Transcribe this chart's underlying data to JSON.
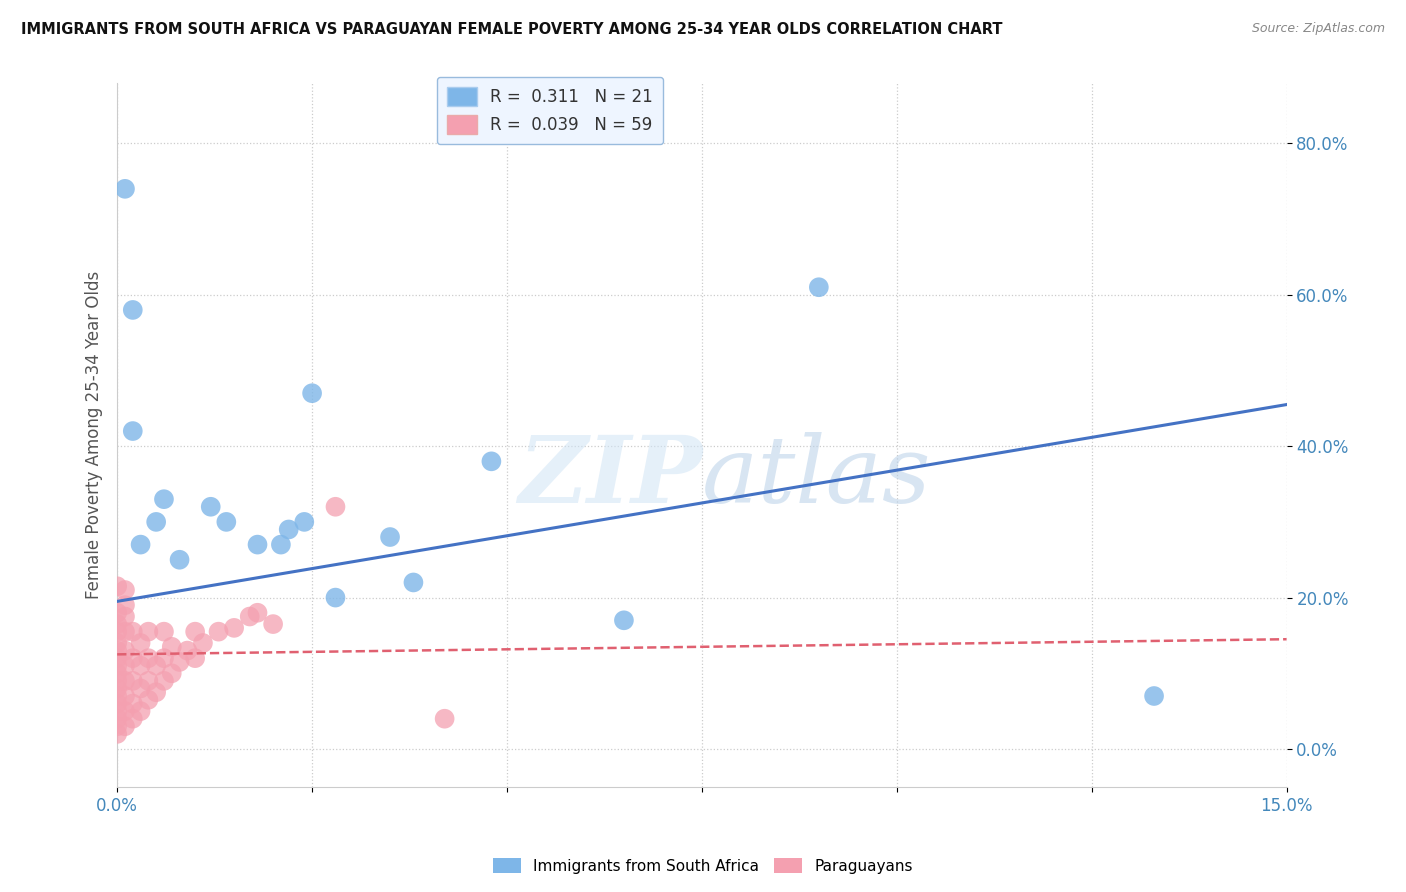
{
  "title": "IMMIGRANTS FROM SOUTH AFRICA VS PARAGUAYAN FEMALE POVERTY AMONG 25-34 YEAR OLDS CORRELATION CHART",
  "source": "Source: ZipAtlas.com",
  "ylabel": "Female Poverty Among 25-34 Year Olds",
  "xlim": [
    0.0,
    0.15
  ],
  "ylim": [
    -0.05,
    0.88
  ],
  "xticks": [
    0.0,
    0.025,
    0.05,
    0.075,
    0.1,
    0.125,
    0.15
  ],
  "yticks": [
    0.0,
    0.2,
    0.4,
    0.6,
    0.8
  ],
  "ytick_labels": [
    "0.0%",
    "20.0%",
    "40.0%",
    "60.0%",
    "80.0%"
  ],
  "xtick_labels": [
    "0.0%",
    "",
    "",
    "",
    "",
    "",
    "15.0%"
  ],
  "blue_R": 0.311,
  "blue_N": 21,
  "pink_R": 0.039,
  "pink_N": 59,
  "blue_color": "#7EB6E8",
  "pink_color": "#F4A0B0",
  "blue_line_color": "#4472C4",
  "pink_line_color": "#E06070",
  "watermark": "ZIPatlas",
  "blue_scatter_x": [
    0.001,
    0.002,
    0.002,
    0.003,
    0.005,
    0.006,
    0.008,
    0.012,
    0.014,
    0.018,
    0.021,
    0.022,
    0.024,
    0.025,
    0.028,
    0.035,
    0.038,
    0.048,
    0.065,
    0.09,
    0.133
  ],
  "blue_scatter_y": [
    0.74,
    0.58,
    0.42,
    0.27,
    0.3,
    0.33,
    0.25,
    0.32,
    0.3,
    0.27,
    0.27,
    0.29,
    0.3,
    0.47,
    0.2,
    0.28,
    0.22,
    0.38,
    0.17,
    0.61,
    0.07
  ],
  "pink_scatter_x": [
    0.0,
    0.0,
    0.0,
    0.0,
    0.0,
    0.0,
    0.0,
    0.0,
    0.0,
    0.0,
    0.0,
    0.0,
    0.0,
    0.0,
    0.0,
    0.0,
    0.0,
    0.001,
    0.001,
    0.001,
    0.001,
    0.001,
    0.001,
    0.001,
    0.001,
    0.001,
    0.001,
    0.002,
    0.002,
    0.002,
    0.002,
    0.002,
    0.003,
    0.003,
    0.003,
    0.003,
    0.004,
    0.004,
    0.004,
    0.004,
    0.005,
    0.005,
    0.006,
    0.006,
    0.006,
    0.007,
    0.007,
    0.008,
    0.009,
    0.01,
    0.01,
    0.011,
    0.013,
    0.015,
    0.017,
    0.018,
    0.02,
    0.028,
    0.042
  ],
  "pink_scatter_y": [
    0.02,
    0.03,
    0.04,
    0.05,
    0.06,
    0.07,
    0.08,
    0.09,
    0.1,
    0.11,
    0.12,
    0.13,
    0.14,
    0.155,
    0.165,
    0.18,
    0.215,
    0.03,
    0.05,
    0.07,
    0.09,
    0.11,
    0.13,
    0.155,
    0.175,
    0.19,
    0.21,
    0.04,
    0.06,
    0.09,
    0.12,
    0.155,
    0.05,
    0.08,
    0.11,
    0.14,
    0.065,
    0.09,
    0.12,
    0.155,
    0.075,
    0.11,
    0.09,
    0.12,
    0.155,
    0.1,
    0.135,
    0.115,
    0.13,
    0.12,
    0.155,
    0.14,
    0.155,
    0.16,
    0.175,
    0.18,
    0.165,
    0.32,
    0.04
  ],
  "blue_line_x0": 0.0,
  "blue_line_y0": 0.195,
  "blue_line_x1": 0.15,
  "blue_line_y1": 0.455,
  "pink_line_x0": 0.0,
  "pink_line_y0": 0.125,
  "pink_line_x1": 0.15,
  "pink_line_y1": 0.145,
  "legend_box_color": "#EEF5FF",
  "legend_border_color": "#99BBDD"
}
